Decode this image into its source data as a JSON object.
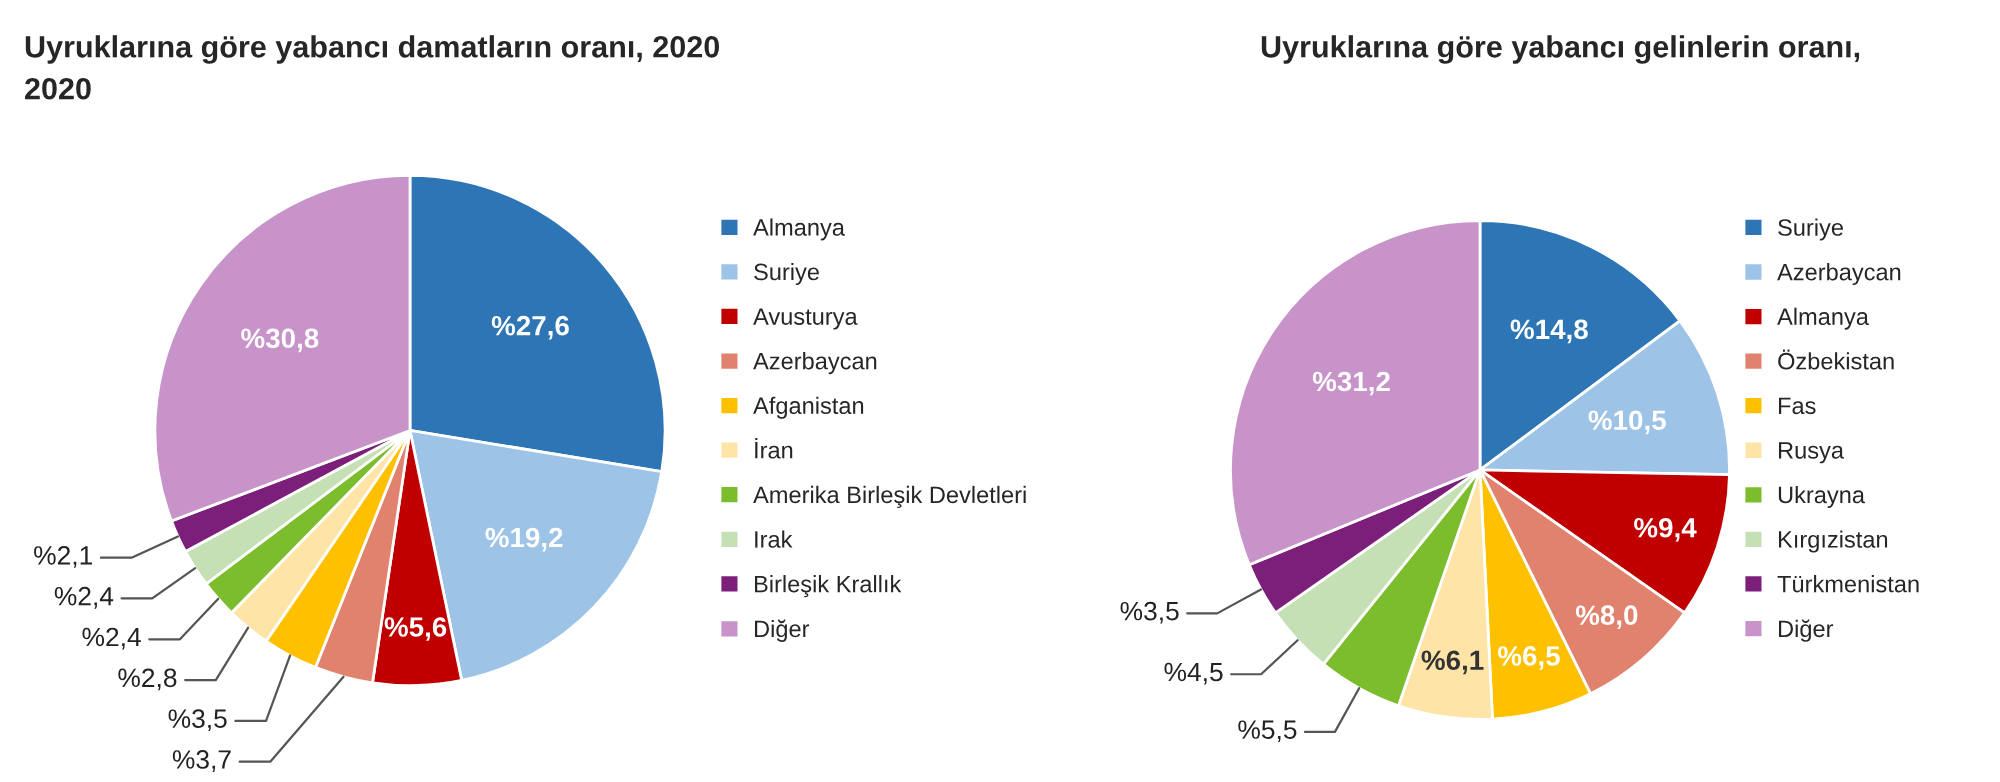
{
  "chart_data": [
    {
      "type": "pie",
      "title": "Uyruklarına göre yabancı damatların oranı, 2020\n2020",
      "legend": "right",
      "categories": [
        "Almanya",
        "Suriye",
        "Avusturya",
        "Azerbaycan",
        "Afganistan",
        "İran",
        "Amerika Birleşik Devletleri",
        "Irak",
        "Birleşik Krallık",
        "Diğer"
      ],
      "values": [
        27.6,
        19.2,
        5.6,
        3.7,
        3.5,
        2.8,
        2.4,
        2.4,
        2.1,
        30.8
      ],
      "value_labels": [
        "%27,6",
        "%19,2",
        "%5,6",
        "%3,7",
        "%3,5",
        "%2,8",
        "%2,4",
        "%2,4",
        "%2,1",
        "%30,8"
      ],
      "colors": [
        "#2e75b6",
        "#9dc3e6",
        "#c00000",
        "#e0826e",
        "#ffc000",
        "#ffe4a8",
        "#7cbd2e",
        "#c5e0b4",
        "#7b1f7a",
        "#c893c8"
      ]
    },
    {
      "type": "pie",
      "title": "Uyruklarına göre yabancı gelinlerin oranı,",
      "legend": "right",
      "categories": [
        "Suriye",
        "Azerbaycan",
        "Almanya",
        "Özbekistan",
        "Fas",
        "Rusya",
        "Ukrayna",
        "Kırgızistan",
        "Türkmenistan",
        "Diğer"
      ],
      "values": [
        14.8,
        10.5,
        9.4,
        8.0,
        6.5,
        6.1,
        5.5,
        4.5,
        3.5,
        31.2
      ],
      "value_labels": [
        "%14,8",
        "%10,5",
        "%9,4",
        "%8,0",
        "%6,5",
        "%6,1",
        "%5,5",
        "%4,5",
        "%3,5",
        "%31,2"
      ],
      "colors": [
        "#2e75b6",
        "#9dc3e6",
        "#c00000",
        "#e0826e",
        "#ffc000",
        "#ffe4a8",
        "#7cbd2e",
        "#c5e0b4",
        "#7b1f7a",
        "#c893c8"
      ]
    }
  ]
}
